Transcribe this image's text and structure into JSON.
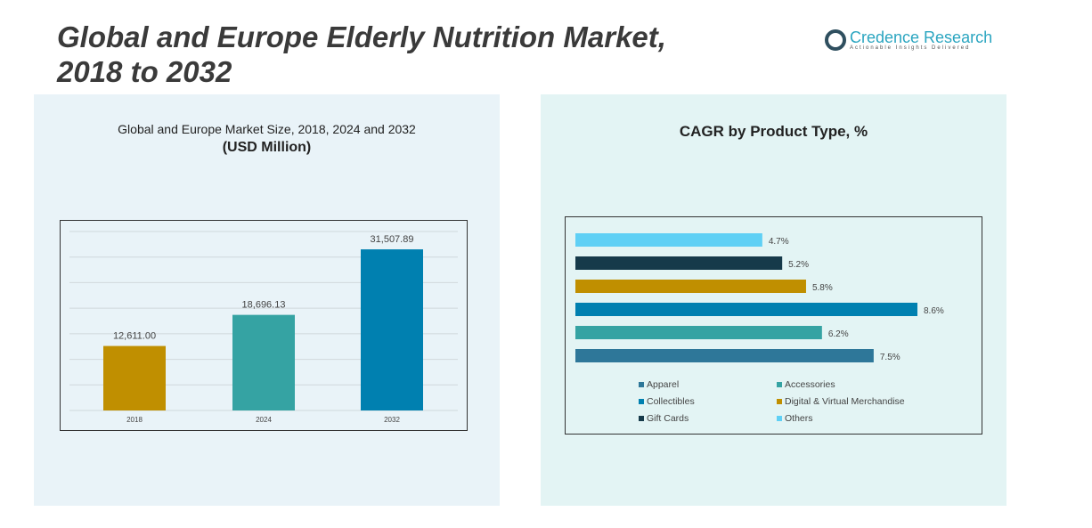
{
  "title_line1": "Global and Europe Elderly Nutrition Market,",
  "title_line2": "2018 to 2032",
  "logo": {
    "name": "Credence Research",
    "tagline": "Actionable Insights Delivered"
  },
  "chart_data": [
    {
      "type": "bar",
      "title": "Global and Europe Market Size, 2018, 2024 and 2032",
      "subtitle": "(USD Million)",
      "categories": [
        "2018",
        "2024",
        "2032"
      ],
      "values": [
        12611.0,
        18696.13,
        31507.89
      ],
      "labels": [
        "12,611.00",
        "18,696.13",
        "31,507.89"
      ],
      "colors": [
        "#c08f00",
        "#35a3a3",
        "#0080b0"
      ],
      "ylim": [
        0,
        35000
      ],
      "grid": true
    },
    {
      "type": "bar",
      "orientation": "horizontal",
      "title": "CAGR by Product Type, %",
      "categories": [
        "Apparel",
        "Accessories",
        "Collectibles",
        "Digital & Virtual Merchandise",
        "Gift Cards",
        "Others"
      ],
      "values": [
        7.5,
        6.2,
        8.6,
        5.8,
        5.2,
        4.7
      ],
      "labels": [
        "7.5%",
        "6.2%",
        "8.6%",
        "5.8%",
        "5.2%",
        "4.7%"
      ],
      "colors": [
        "#2e7799",
        "#35a3a3",
        "#0080b0",
        "#c08f00",
        "#163a4a",
        "#5fd0f5"
      ],
      "legend": "bottom"
    }
  ]
}
